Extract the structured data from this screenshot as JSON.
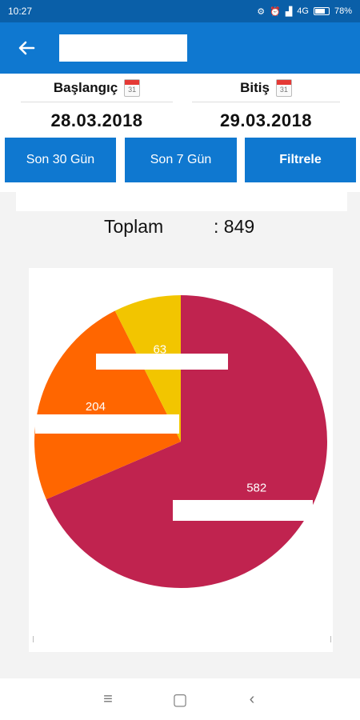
{
  "status_bar": {
    "time": "10:27",
    "network": "4G",
    "battery": "78%",
    "battery_level": 0.78
  },
  "header": {
    "back_icon": "arrow-left-icon",
    "title": ""
  },
  "filter": {
    "start_label": "Başlangıç",
    "start_value": "28.03.2018",
    "end_label": "Bitiş",
    "end_value": "29.03.2018",
    "calendar_day": "31",
    "buttons": {
      "last30": "Son 30 Gün",
      "last7": "Son 7 Gün",
      "apply": "Filtrele"
    }
  },
  "summary": {
    "total_label": "Toplam",
    "total_value": ": 849"
  },
  "chart_data": {
    "type": "pie",
    "slices": [
      {
        "label": "582",
        "value": 582,
        "color": "#c0234f"
      },
      {
        "label": "204",
        "value": 204,
        "color": "#ff6600"
      },
      {
        "label": "63",
        "value": 63,
        "color": "#f2c500"
      }
    ]
  },
  "nav": {
    "menu": "≡",
    "home": "▢",
    "back": "‹"
  }
}
